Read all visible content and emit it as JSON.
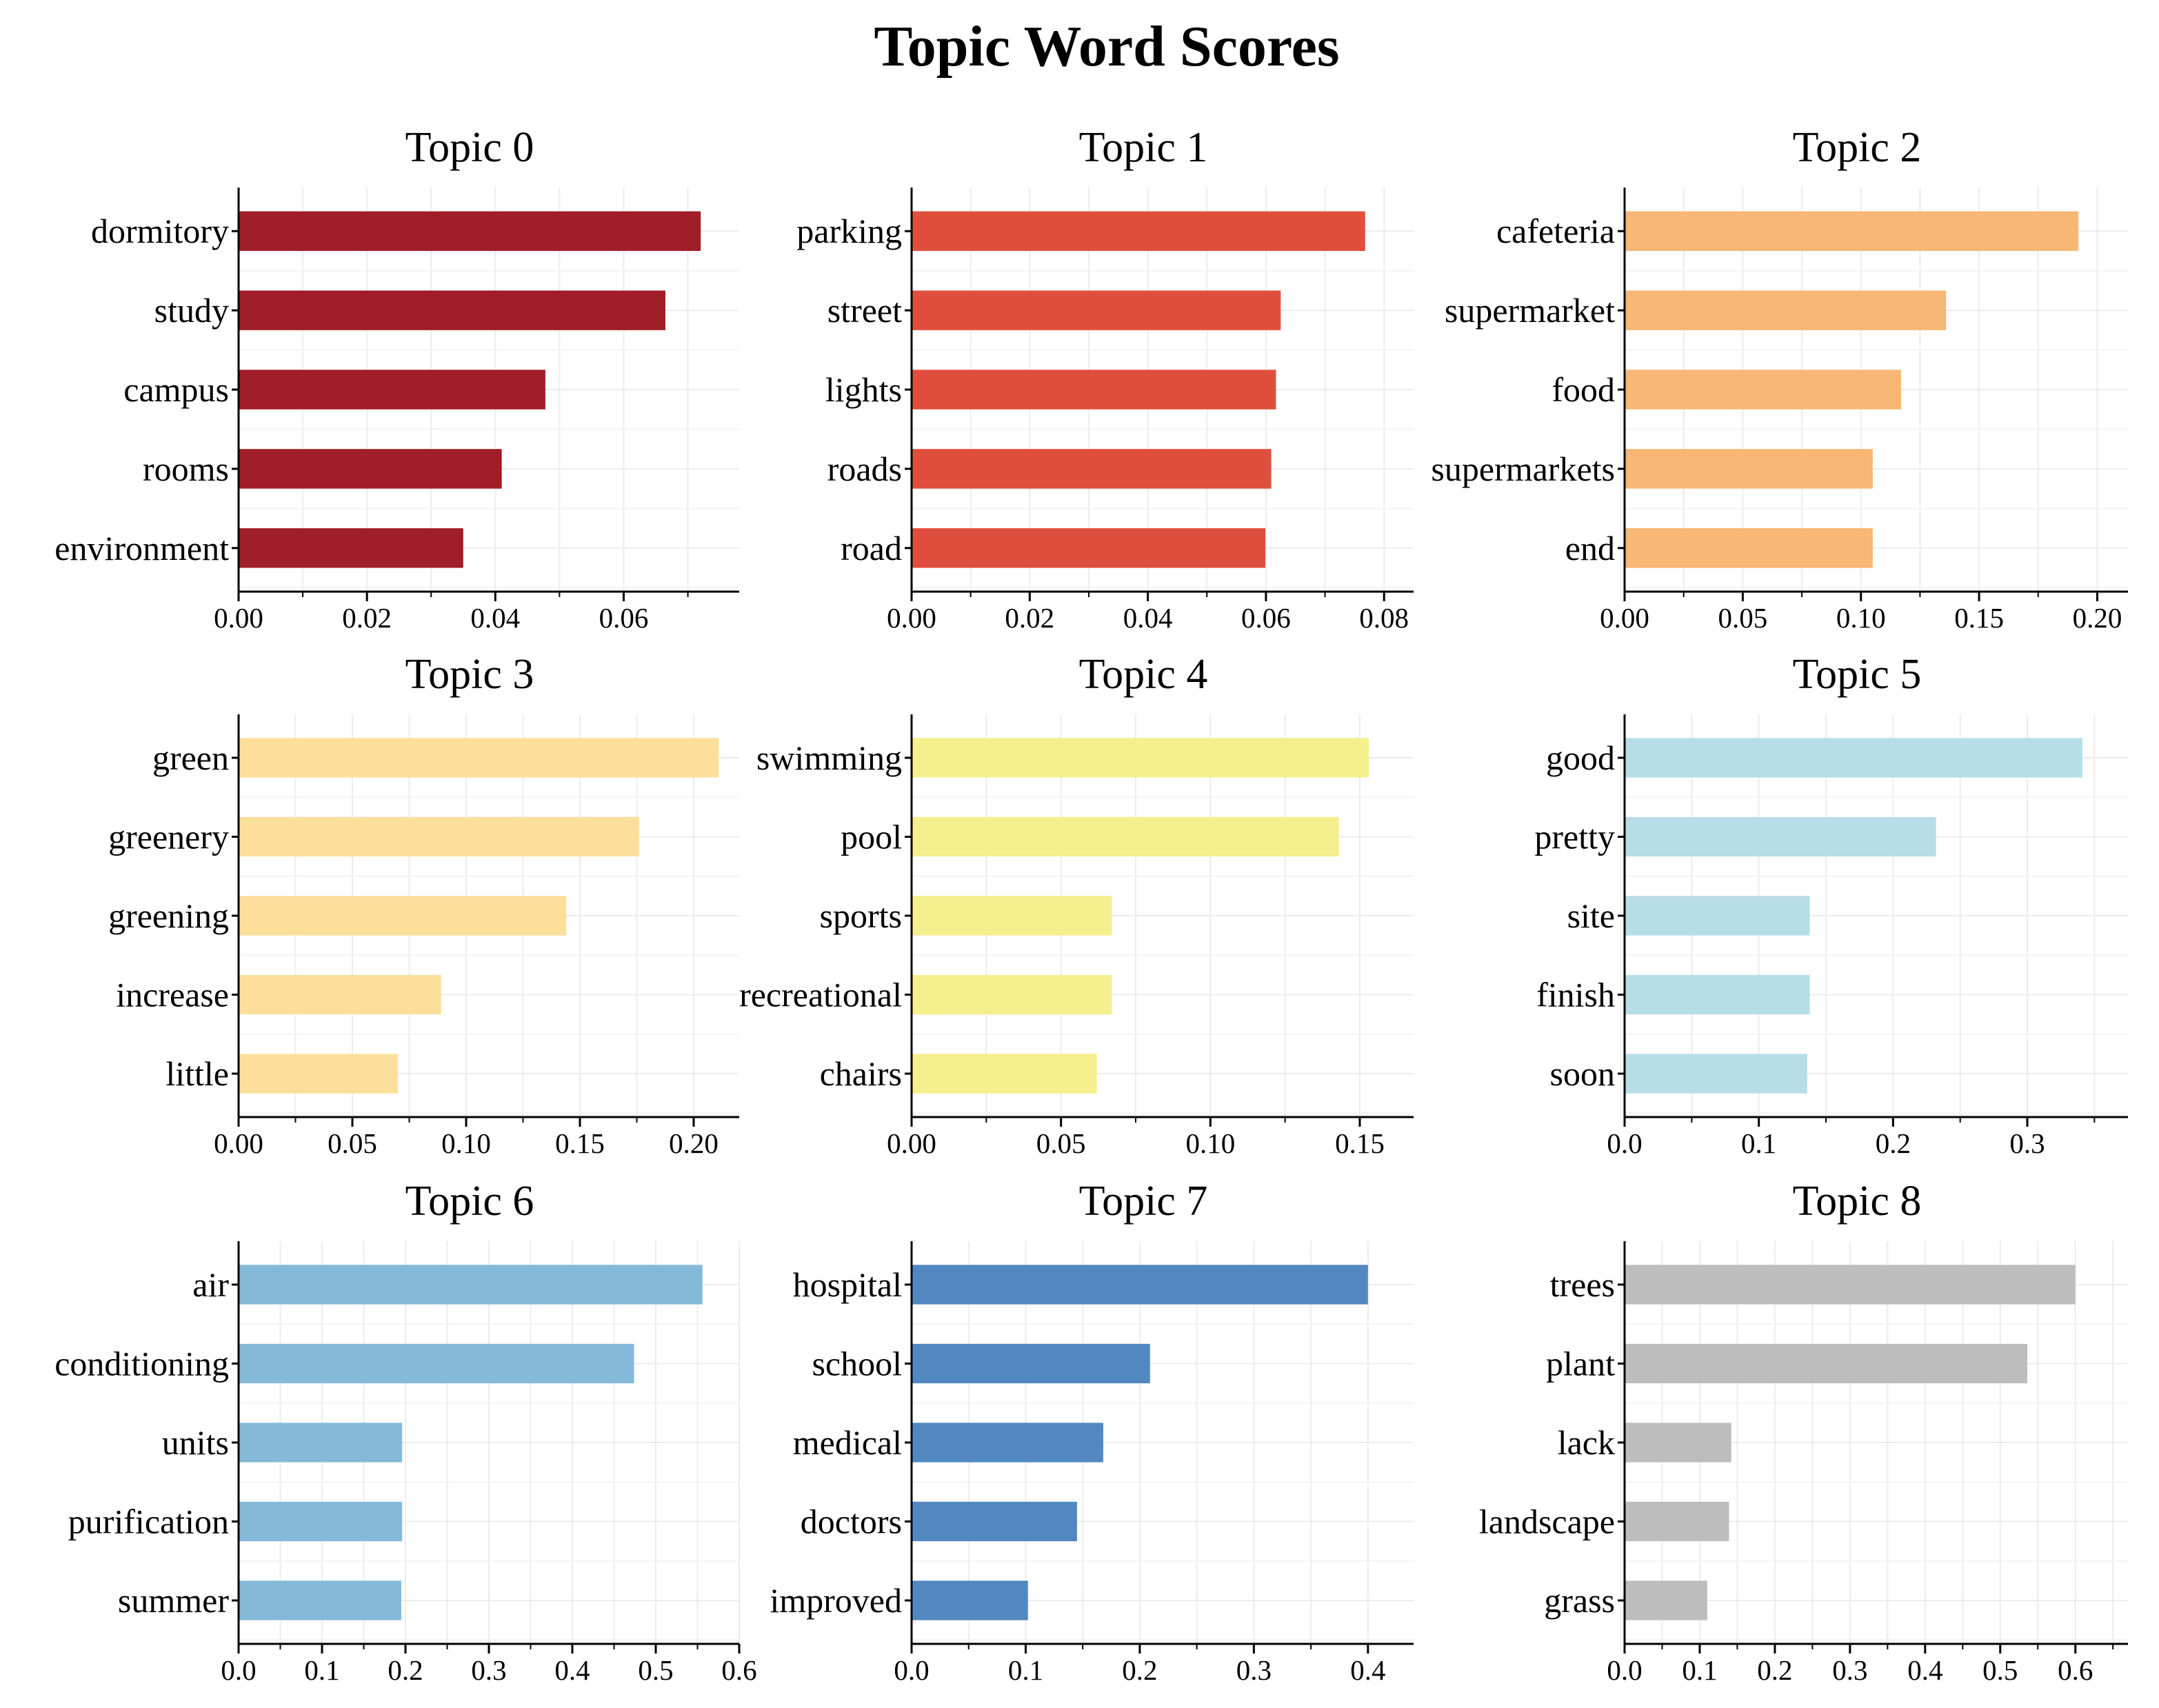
{
  "title": "Topic Word Scores",
  "chart_data": [
    {
      "type": "bar",
      "orientation": "horizontal",
      "title": "Topic 0",
      "color": "#A01E27",
      "categories": [
        "dormitory",
        "study",
        "campus",
        "rooms",
        "environment"
      ],
      "values": [
        0.072,
        0.0665,
        0.0478,
        0.041,
        0.035
      ],
      "xlim": [
        0,
        0.078
      ],
      "xticks": [
        "0.00",
        "0.02",
        "0.04",
        "0.06"
      ],
      "grid": true
    },
    {
      "type": "bar",
      "orientation": "horizontal",
      "title": "Topic 1",
      "color": "#E04F3D",
      "categories": [
        "parking",
        "street",
        "lights",
        "roads",
        "road"
      ],
      "values": [
        0.0768,
        0.0625,
        0.0617,
        0.0609,
        0.0599
      ],
      "xlim": [
        0,
        0.085
      ],
      "xticks": [
        "0.00",
        "0.02",
        "0.04",
        "0.06",
        "0.08"
      ],
      "grid": true
    },
    {
      "type": "bar",
      "orientation": "horizontal",
      "title": "Topic 2",
      "color": "#F8B774",
      "categories": [
        "cafeteria",
        "supermarket",
        "food",
        "supermarkets",
        "end"
      ],
      "values": [
        0.192,
        0.136,
        0.117,
        0.105,
        0.105
      ],
      "xlim": [
        0,
        0.213
      ],
      "xticks": [
        "0.00",
        "0.05",
        "0.10",
        "0.15",
        "0.20"
      ],
      "grid": true
    },
    {
      "type": "bar",
      "orientation": "horizontal",
      "title": "Topic 3",
      "color": "#FDDF9C",
      "categories": [
        "green",
        "greenery",
        "greening",
        "increase",
        "little"
      ],
      "values": [
        0.211,
        0.176,
        0.144,
        0.089,
        0.07
      ],
      "xlim": [
        0,
        0.22
      ],
      "xticks": [
        "0.00",
        "0.05",
        "0.10",
        "0.15",
        "0.20"
      ],
      "grid": true
    },
    {
      "type": "bar",
      "orientation": "horizontal",
      "title": "Topic 4",
      "color": "#F5EF8D",
      "categories": [
        "swimming",
        "pool",
        "sports",
        "recreational",
        "chairs"
      ],
      "values": [
        0.153,
        0.143,
        0.067,
        0.067,
        0.062
      ],
      "xlim": [
        0,
        0.168
      ],
      "xticks": [
        "0.00",
        "0.05",
        "0.10",
        "0.15"
      ],
      "grid": true
    },
    {
      "type": "bar",
      "orientation": "horizontal",
      "title": "Topic 5",
      "color": "#B7DDE9",
      "categories": [
        "good",
        "pretty",
        "site",
        "finish",
        "soon"
      ],
      "values": [
        0.341,
        0.232,
        0.138,
        0.138,
        0.136
      ],
      "xlim": [
        0,
        0.375
      ],
      "xticks": [
        "0.0",
        "0.1",
        "0.2",
        "0.3"
      ],
      "grid": true
    },
    {
      "type": "bar",
      "orientation": "horizontal",
      "title": "Topic 6",
      "color": "#84B9D9",
      "categories": [
        "air",
        "conditioning",
        "units",
        "purification",
        "summer"
      ],
      "values": [
        0.556,
        0.474,
        0.196,
        0.196,
        0.195
      ],
      "xlim": [
        0,
        0.6
      ],
      "xticks": [
        "0.0",
        "0.1",
        "0.2",
        "0.3",
        "0.4",
        "0.5",
        "0.6"
      ],
      "grid": true
    },
    {
      "type": "bar",
      "orientation": "horizontal",
      "title": "Topic 7",
      "color": "#5288C0",
      "categories": [
        "hospital",
        "school",
        "medical",
        "doctors",
        "improved"
      ],
      "values": [
        0.4,
        0.209,
        0.168,
        0.145,
        0.102
      ],
      "xlim": [
        0,
        0.44
      ],
      "xticks": [
        "0.0",
        "0.1",
        "0.2",
        "0.3",
        "0.4"
      ],
      "grid": true
    },
    {
      "type": "bar",
      "orientation": "horizontal",
      "title": "Topic 8",
      "color": "#BDBDBD",
      "categories": [
        "trees",
        "plant",
        "lack",
        "landscape",
        "grass"
      ],
      "values": [
        0.6,
        0.536,
        0.142,
        0.139,
        0.11
      ],
      "xlim": [
        0,
        0.67
      ],
      "xticks": [
        "0.0",
        "0.1",
        "0.2",
        "0.3",
        "0.4",
        "0.5",
        "0.6"
      ],
      "grid": true
    }
  ]
}
